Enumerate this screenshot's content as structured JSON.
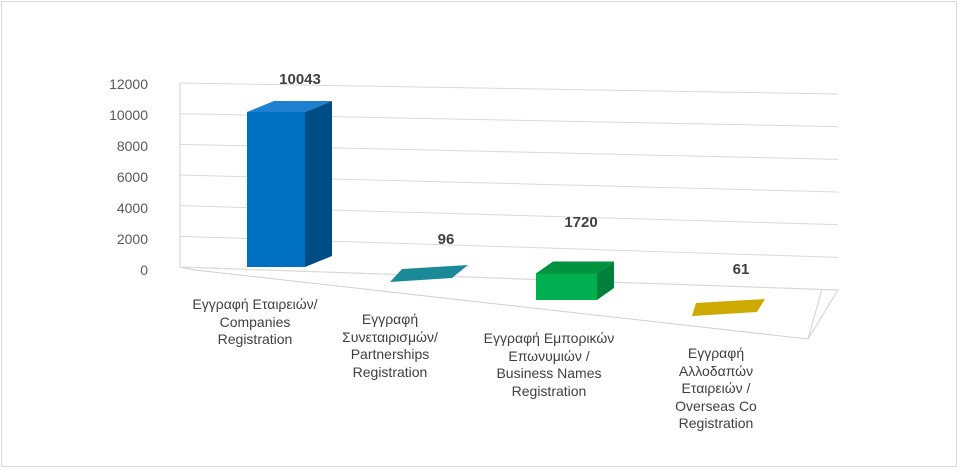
{
  "chart_data": {
    "type": "bar",
    "title": "",
    "xlabel": "",
    "ylabel": "",
    "ylim": [
      0,
      12000
    ],
    "yticks": [
      0,
      2000,
      4000,
      6000,
      8000,
      10000,
      12000
    ],
    "grid": true,
    "legend": "none",
    "categories": [
      "Εγγραφή  Εταιρειών/\nCompanies\nRegistration",
      "Εγγραφή\nΣυνεταιρισμών/\nPartnerships\nRegistration",
      "Εγγραφή  Εμπορικών\nΕπωνυμιών /\nBusiness Names\nRegistration",
      "Εγγραφή\nΑλλοδαπών\nΕταιρειών /\nOverseas Co\nRegistration"
    ],
    "values": [
      10043,
      96,
      1720,
      61
    ],
    "data_labels": [
      "10043",
      "96",
      "1720",
      "61"
    ],
    "colors": [
      "#0070c0",
      "#1a8a99",
      "#00b050",
      "#ccaa00"
    ],
    "side_colors": [
      "#004c87",
      "#106570",
      "#00803a",
      "#a08400"
    ],
    "top_colors": [
      "#1f7fd0",
      "#137c89",
      "#00933f",
      "#d9a300"
    ]
  }
}
